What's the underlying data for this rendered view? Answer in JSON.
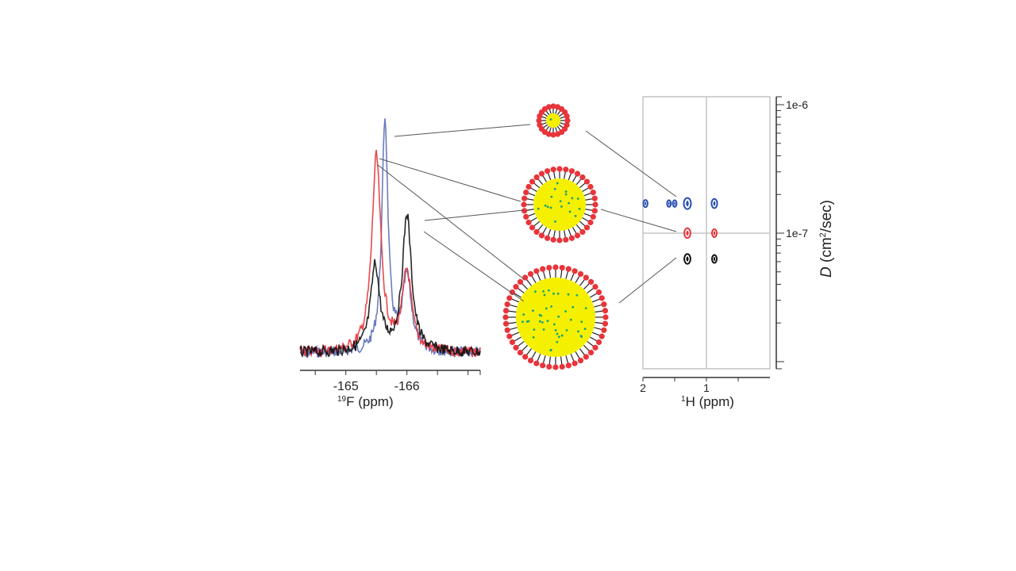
{
  "chart_data": [
    {
      "type": "line",
      "xlabel_sup": "19",
      "xlabel": "F (ppm)",
      "xlim": [
        -164.25,
        -167.2
      ],
      "x_ticks": [
        "-165",
        "-166"
      ],
      "y_axis": "none",
      "series": [
        {
          "color": "#5b6fb8",
          "peaks": [
            {
              "x": -165.64,
              "y": 1.0
            },
            {
              "x": -166.0,
              "y": 0.32
            }
          ]
        },
        {
          "color": "#e8343a",
          "peaks": [
            {
              "x": -165.5,
              "y": 0.84
            },
            {
              "x": -166.0,
              "y": 0.34
            }
          ]
        },
        {
          "color": "#111111",
          "peaks": [
            {
              "x": -165.48,
              "y": 0.37
            },
            {
              "x": -166.0,
              "y": 0.59
            }
          ]
        }
      ]
    },
    {
      "type": "scatter",
      "xlabel_sup": "1",
      "xlabel": "H (ppm)",
      "ylabel_italic": "D",
      "ylabel_unit": " (cm",
      "ylabel_sup": "2",
      "ylabel_tail": "/sec)",
      "xlim": [
        2,
        0
      ],
      "ylim": [
        8.8e-09,
        1.15e-06
      ],
      "y_scale": "log",
      "x_ticks": [
        "2",
        "1"
      ],
      "y_ticks": [
        "1e-6",
        "1e-7"
      ],
      "gridlines": {
        "x": 1,
        "y": 1e-07
      },
      "series": [
        {
          "color": "#2a4fb0",
          "points": [
            {
              "x": 1.96,
              "y": 1.7e-07,
              "s": 0.4
            },
            {
              "x": 1.59,
              "y": 1.7e-07,
              "s": 0.3
            },
            {
              "x": 1.5,
              "y": 1.7e-07,
              "s": 0.3
            },
            {
              "x": 1.3,
              "y": 1.7e-07,
              "s": 1.0
            },
            {
              "x": 0.875,
              "y": 1.7e-07,
              "s": 0.7
            }
          ]
        },
        {
          "color": "#e8343a",
          "points": [
            {
              "x": 1.3,
              "y": 1e-07,
              "s": 0.8
            },
            {
              "x": 0.875,
              "y": 1e-07,
              "s": 0.5
            }
          ]
        },
        {
          "color": "#111111",
          "points": [
            {
              "x": 1.3,
              "y": 6.3e-08,
              "s": 0.8
            },
            {
              "x": 0.875,
              "y": 6.3e-08,
              "s": 0.5
            }
          ]
        }
      ]
    }
  ],
  "micelles": {
    "shell_color": "#e8343a",
    "core_color": "#f5f000",
    "dot_color": "#1aa37a",
    "sizes": [
      "small",
      "medium",
      "large"
    ]
  }
}
